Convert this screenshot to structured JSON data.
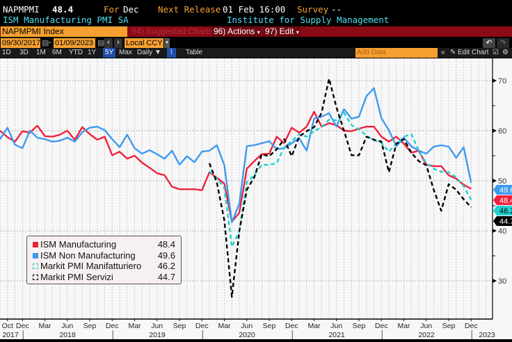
{
  "header": {
    "ticker": "NAPMPMI",
    "last": "48.4",
    "for_label": "For",
    "for_value": "Dec",
    "next_label": "Next Release",
    "next_value": "01 Feb 16:00",
    "survey_label": "Survey",
    "survey_value": "--",
    "desc": "ISM Manufacturing PMI SA",
    "source": "Institute for Supply Management"
  },
  "toolbar": {
    "security": "NAPMPMI Index",
    "suggested": "94) Suggested Charts",
    "actions": "96) Actions",
    "edit": "97) Edit"
  },
  "range": {
    "start": "09/30/2017",
    "end": "01/09/2023",
    "currency": "Local CCY"
  },
  "periods": [
    "1D",
    "3D",
    "1M",
    "6M",
    "YTD",
    "1Y",
    "5Y",
    "Max"
  ],
  "selected_period": "5Y",
  "frequency": "Daily ▼",
  "table_label": "Table",
  "add_data_placeholder": "Add Data",
  "edit_chart": "Edit Chart",
  "chart_data": {
    "type": "line",
    "ylim": [
      25,
      73
    ],
    "yticks": [
      30,
      40,
      50,
      60,
      70
    ],
    "grid": true,
    "legend_placement": "bottom-left",
    "x_start": "2017-09",
    "x_end": "2022-12",
    "frequency": "monthly",
    "x_month_labels": [
      "Oct",
      "Dec",
      "Mar",
      "Jun",
      "Sep",
      "Dec",
      "Mar",
      "Jun",
      "Sep",
      "Dec",
      "Mar",
      "Jun",
      "Sep",
      "Dec",
      "Mar",
      "Jun",
      "Sep",
      "Dec",
      "Mar",
      "Jun",
      "Sep",
      "Dec"
    ],
    "x_year_labels": [
      "2017",
      "2018",
      "2019",
      "2020",
      "2021",
      "2022",
      "2023"
    ],
    "series": [
      {
        "name": "ISM Manufacturing",
        "last": "48.4",
        "color": "#f0203c",
        "style": "solid",
        "start": "2017-09",
        "values": [
          60.0,
          58.7,
          57.8,
          59.9,
          59.6,
          61.0,
          58.9,
          58.8,
          59.2,
          60.0,
          58.2,
          60.7,
          59.3,
          58.2,
          58.8,
          55.1,
          55.8,
          54.4,
          55.0,
          53.6,
          52.6,
          51.5,
          51.1,
          48.8,
          48.3,
          48.3,
          48.3,
          48.1,
          51.7,
          50.6,
          49.4,
          41.8,
          43.6,
          52.4,
          53.9,
          55.3,
          55.4,
          58.8,
          57.5,
          60.6,
          59.6,
          60.8,
          63.8,
          60.8,
          61.5,
          61.1,
          60.0,
          59.9,
          60.4,
          60.8,
          60.8,
          58.8,
          57.8,
          58.8,
          57.4,
          55.6,
          56.0,
          53.2,
          52.9,
          52.9,
          51.1,
          50.4,
          49.2,
          48.4
        ]
      },
      {
        "name": "ISM Non Manufacturing",
        "last": "49.6",
        "color": "#3d9af0",
        "style": "solid",
        "start": "2017-09",
        "values": [
          58.3,
          60.6,
          57.2,
          56.5,
          60.0,
          58.6,
          58.3,
          57.8,
          58.0,
          58.6,
          57.8,
          59.7,
          60.6,
          60.8,
          60.1,
          58.3,
          56.7,
          59.2,
          56.5,
          55.4,
          56.1,
          55.3,
          54.4,
          56.0,
          53.2,
          54.9,
          53.7,
          55.8,
          56.0,
          57.1,
          53.1,
          41.7,
          45.4,
          56.9,
          57.1,
          57.5,
          57.9,
          56.3,
          56.5,
          57.5,
          58.5,
          56.0,
          62.4,
          62.8,
          63.5,
          60.8,
          64.3,
          62.4,
          62.8,
          66.9,
          68.5,
          62.5,
          60.1,
          56.9,
          58.6,
          56.9,
          56.0,
          55.4,
          56.8,
          57.1,
          56.8,
          54.6,
          56.7,
          49.6
        ]
      },
      {
        "name": "Markit PMI Manifatturiero",
        "last": "46.2",
        "color": "#20d0d0",
        "style": "dashed",
        "start": "2020-01",
        "values": [
          51.9,
          50.4,
          48.6,
          36.8,
          39.9,
          49.7,
          51.1,
          53.2,
          53.2,
          53.5,
          56.7,
          57.9,
          59.3,
          58.8,
          59.9,
          60.7,
          62.2,
          62.1,
          63.6,
          61.1,
          60.3,
          59.0,
          58.1,
          57.6,
          55.8,
          57.4,
          58.8,
          59.3,
          56.0,
          53.5,
          52.4,
          51.8,
          51.7,
          50.7,
          48.9,
          46.2
        ]
      },
      {
        "name": "Markit PMI Servizi",
        "last": "44.7",
        "color": "#000000",
        "style": "dashed",
        "start": "2020-01",
        "values": [
          53.5,
          49.6,
          42.1,
          26.8,
          39.9,
          48.2,
          50.7,
          55.3,
          54.9,
          56.3,
          58.3,
          54.9,
          58.8,
          59.9,
          60.7,
          63.6,
          70.4,
          64.6,
          60.0,
          55.1,
          55.1,
          58.8,
          58.2,
          57.8,
          51.7,
          57.4,
          58.3,
          55.6,
          53.9,
          53.1,
          48.2,
          44.0,
          49.3,
          48.2,
          46.3,
          44.7
        ]
      }
    ]
  }
}
